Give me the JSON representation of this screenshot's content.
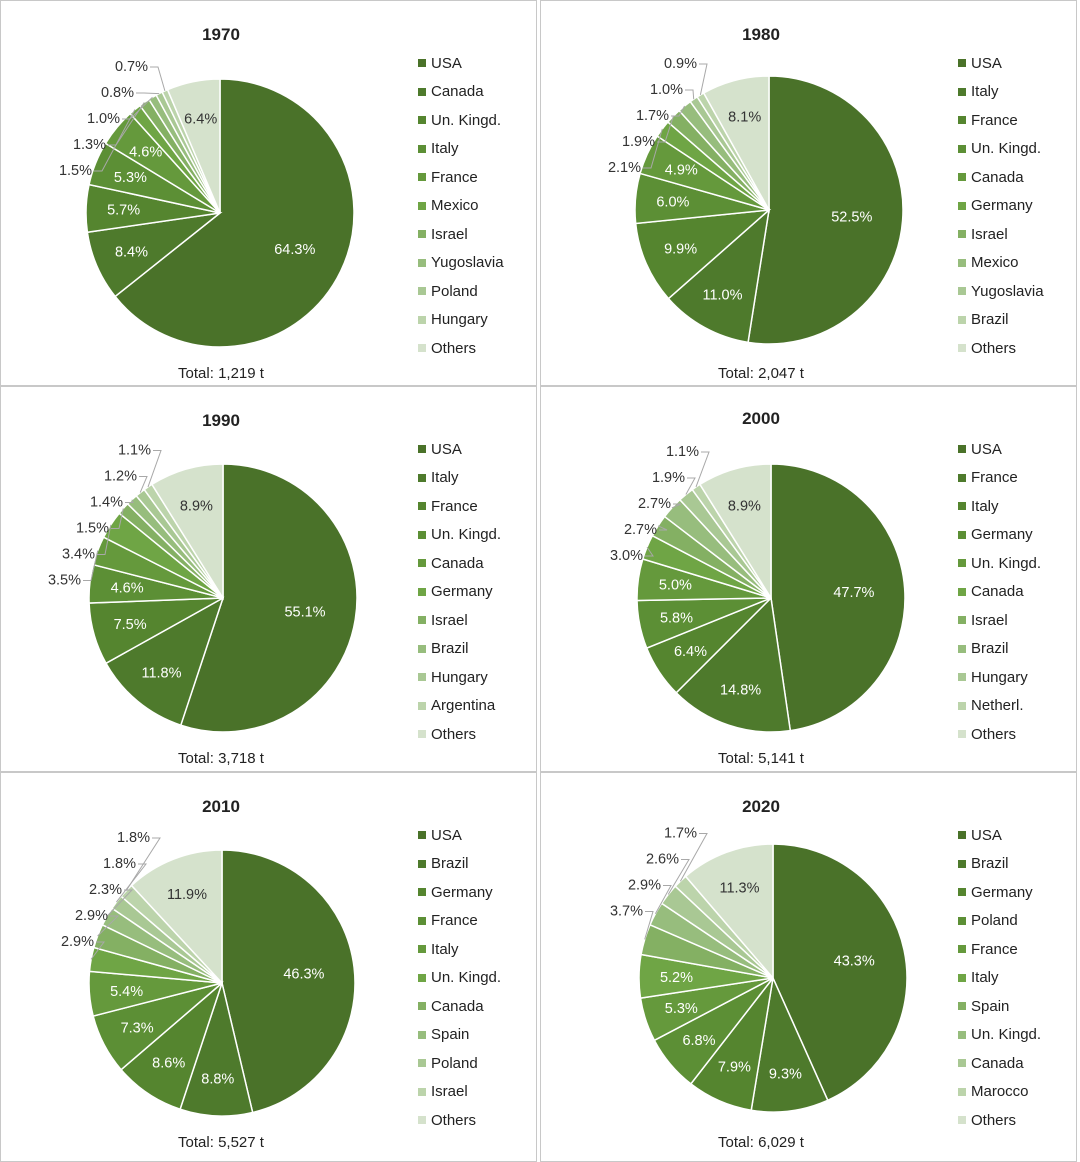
{
  "palette": [
    "#4a7229",
    "#4e7a2c",
    "#55852f",
    "#5c8f35",
    "#65993c",
    "#6fa545",
    "#84b063",
    "#97bd7d",
    "#a9c894",
    "#bcd4ab",
    "#d5e2cc"
  ],
  "chart_data": [
    {
      "type": "pie",
      "title": "1970",
      "total": "Total: 1,219 t",
      "labels": [
        "USA",
        "Canada",
        "Un. Kingd.",
        "Italy",
        "France",
        "Mexico",
        "Israel",
        "Yugoslavia",
        "Poland",
        "Hungary",
        "Others"
      ],
      "values": [
        64.3,
        8.4,
        5.7,
        5.3,
        4.6,
        1.5,
        1.3,
        1.0,
        0.8,
        0.7,
        6.4
      ],
      "value_labels": [
        "64.3%",
        "8.4%",
        "5.7%",
        "5.3%",
        "4.6%",
        "1.5%",
        "1.3%",
        "1.0%",
        "0.8%",
        "0.7%",
        "6.4%"
      ],
      "legend": "right"
    },
    {
      "type": "pie",
      "title": "1980",
      "total": "Total: 2,047 t",
      "labels": [
        "USA",
        "Italy",
        "France",
        "Un. Kingd.",
        "Canada",
        "Germany",
        "Israel",
        "Mexico",
        "Yugoslavia",
        "Brazil",
        "Others"
      ],
      "values": [
        52.5,
        11.0,
        9.9,
        6.0,
        4.9,
        2.1,
        1.9,
        1.7,
        1.0,
        0.9,
        8.1
      ],
      "value_labels": [
        "52.5%",
        "11.0%",
        "9.9%",
        "6.0%",
        "4.9%",
        "2.1%",
        "1.9%",
        "1.7%",
        "1.0%",
        "0.9%",
        "8.1%"
      ],
      "legend": "right"
    },
    {
      "type": "pie",
      "title": "1990",
      "total": "Total: 3,718 t",
      "labels": [
        "USA",
        "Italy",
        "France",
        "Un. Kingd.",
        "Canada",
        "Germany",
        "Israel",
        "Brazil",
        "Hungary",
        "Argentina",
        "Others"
      ],
      "values": [
        55.1,
        11.8,
        7.5,
        4.6,
        3.5,
        3.4,
        1.5,
        1.4,
        1.2,
        1.1,
        8.9
      ],
      "value_labels": [
        "55.1%",
        "11.8%",
        "7.5%",
        "4.6%",
        "3.5%",
        "3.4%",
        "1.5%",
        "1.4%",
        "1.2%",
        "1.1%",
        "8.9%"
      ],
      "legend": "right"
    },
    {
      "type": "pie",
      "title": "2000",
      "total": "Total: 5,141 t",
      "labels": [
        "USA",
        "France",
        "Italy",
        "Germany",
        "Un. Kingd.",
        "Canada",
        "Israel",
        "Brazil",
        "Hungary",
        "Netherl.",
        "Others"
      ],
      "values": [
        47.7,
        14.8,
        6.4,
        5.8,
        5.0,
        3.0,
        2.7,
        2.7,
        1.9,
        1.1,
        8.9
      ],
      "value_labels": [
        "47.7%",
        "14.8%",
        "6.4%",
        "5.8%",
        "5.0%",
        "3.0%",
        "2.7%",
        "2.7%",
        "1.9%",
        "1.1%",
        "8.9%"
      ],
      "legend": "right"
    },
    {
      "type": "pie",
      "title": "2010",
      "total": "Total: 5,527 t",
      "labels": [
        "USA",
        "Brazil",
        "Germany",
        "France",
        "Italy",
        "Un. Kingd.",
        "Canada",
        "Spain",
        "Poland",
        "Israel",
        "Others"
      ],
      "values": [
        46.3,
        8.8,
        8.6,
        7.3,
        5.4,
        2.9,
        2.9,
        2.3,
        1.8,
        1.8,
        11.9
      ],
      "value_labels": [
        "46.3%",
        "8.8%",
        "8.6%",
        "7.3%",
        "5.4%",
        "2.9%",
        "2.9%",
        "2.3%",
        "1.8%",
        "1.8%",
        "11.9%"
      ],
      "legend": "right"
    },
    {
      "type": "pie",
      "title": "2020",
      "total": "Total: 6,029 t",
      "labels": [
        "USA",
        "Brazil",
        "Germany",
        "Poland",
        "France",
        "Italy",
        "Spain",
        "Un. Kingd.",
        "Canada",
        "Marocco",
        "Others"
      ],
      "values": [
        43.3,
        9.3,
        7.9,
        6.8,
        5.3,
        5.2,
        3.7,
        2.9,
        2.6,
        1.7,
        11.3
      ],
      "value_labels": [
        "43.3%",
        "9.3%",
        "7.9%",
        "6.8%",
        "5.3%",
        "5.2%",
        "3.7%",
        "2.9%",
        "2.6%",
        "1.7%",
        "11.3%"
      ],
      "legend": "right"
    }
  ]
}
